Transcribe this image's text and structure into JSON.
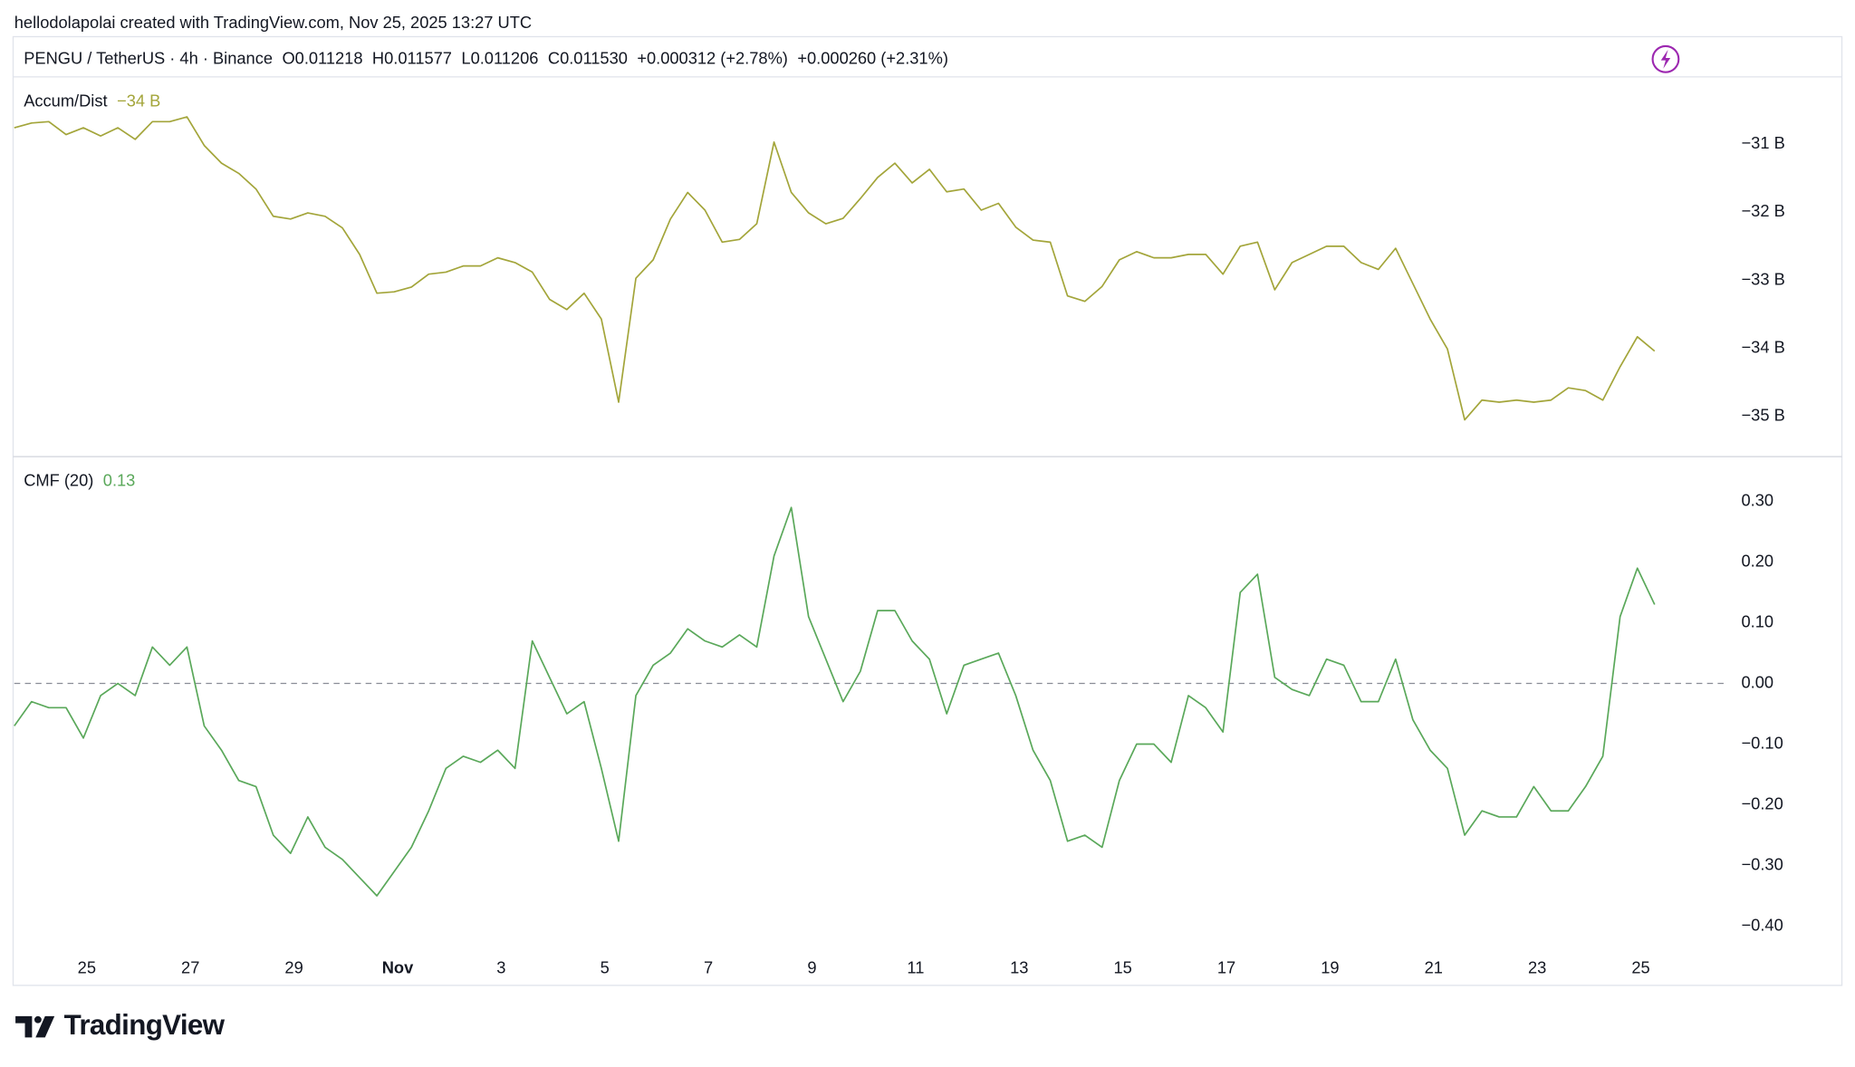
{
  "header": {
    "attribution": "hellodolapolai created with TradingView.com, Nov 25, 2025 13:27 UTC",
    "symbol": "PENGU / TetherUS · 4h · Binance",
    "ohlc": [
      "O0.011218",
      "H0.011577",
      "L0.011206",
      "C0.011530",
      "+0.000312 (+2.78%)",
      "+0.000260 (+2.31%)"
    ]
  },
  "brand": "TradingView",
  "chart_data": [
    {
      "type": "line",
      "xlim": [
        0,
        99.2
      ],
      "ylim": [
        -35.59,
        -30.03
      ],
      "yticks": [
        {
          "value": -31,
          "label": "−31 B"
        },
        {
          "value": -32,
          "label": "−32 B"
        },
        {
          "value": -33,
          "label": "−33 B"
        },
        {
          "value": -34,
          "label": "−34 B"
        },
        {
          "value": -35,
          "label": "−35 B"
        }
      ],
      "series": [
        {
          "name": "Accum/Dist",
          "last_label": "−34 B",
          "color": "#a3a53a",
          "values": [
            -30.76,
            -30.69,
            -30.67,
            -30.86,
            -30.76,
            -30.88,
            -30.76,
            -30.93,
            -30.67,
            -30.67,
            -30.6,
            -31.02,
            -31.28,
            -31.43,
            -31.66,
            -32.06,
            -32.1,
            -32.01,
            -32.06,
            -32.23,
            -32.62,
            -33.19,
            -33.17,
            -33.1,
            -32.91,
            -32.88,
            -32.79,
            -32.79,
            -32.67,
            -32.74,
            -32.88,
            -33.28,
            -33.43,
            -33.19,
            -33.57,
            -34.79,
            -32.97,
            -32.7,
            -32.1,
            -31.71,
            -31.97,
            -32.44,
            -32.4,
            -32.17,
            -30.97,
            -31.71,
            -32.01,
            -32.17,
            -32.09,
            -31.8,
            -31.49,
            -31.28,
            -31.57,
            -31.37,
            -31.7,
            -31.66,
            -31.97,
            -31.87,
            -32.22,
            -32.41,
            -32.44,
            -33.23,
            -33.31,
            -33.09,
            -32.7,
            -32.58,
            -32.67,
            -32.67,
            -32.62,
            -32.62,
            -32.91,
            -32.5,
            -32.44,
            -33.14,
            -32.74,
            -32.62,
            -32.5,
            -32.5,
            -32.74,
            -32.84,
            -32.53,
            -33.05,
            -33.57,
            -34.01,
            -35.05,
            -34.76,
            -34.79,
            -34.76,
            -34.79,
            -34.76,
            -34.58,
            -34.62,
            -34.76,
            -34.27,
            -33.83,
            -34.04
          ]
        }
      ]
    },
    {
      "type": "line",
      "xlim": [
        0,
        99.2
      ],
      "ylim": [
        -0.443,
        0.366
      ],
      "baseline": 0,
      "yticks": [
        {
          "value": 0.3,
          "label": "0.30"
        },
        {
          "value": 0.2,
          "label": "0.20"
        },
        {
          "value": 0.1,
          "label": "0.10"
        },
        {
          "value": 0,
          "label": "0.00"
        },
        {
          "value": -0.1,
          "label": "−0.10"
        },
        {
          "value": -0.2,
          "label": "−0.20"
        },
        {
          "value": -0.3,
          "label": "−0.30"
        },
        {
          "value": -0.4,
          "label": "−0.40"
        }
      ],
      "xticks": [
        {
          "value": 4.2,
          "label": "25"
        },
        {
          "value": 10.2,
          "label": "27"
        },
        {
          "value": 16.2,
          "label": "29"
        },
        {
          "value": 22.2,
          "label": "Nov"
        },
        {
          "value": 28.2,
          "label": "3"
        },
        {
          "value": 34.2,
          "label": "5"
        },
        {
          "value": 40.2,
          "label": "7"
        },
        {
          "value": 46.2,
          "label": "9"
        },
        {
          "value": 52.2,
          "label": "11"
        },
        {
          "value": 58.2,
          "label": "13"
        },
        {
          "value": 64.2,
          "label": "15"
        },
        {
          "value": 70.2,
          "label": "17"
        },
        {
          "value": 76.2,
          "label": "19"
        },
        {
          "value": 82.2,
          "label": "21"
        },
        {
          "value": 88.2,
          "label": "23"
        },
        {
          "value": 94.2,
          "label": "25"
        }
      ],
      "series": [
        {
          "name": "CMF (20)",
          "last_label": "0.13",
          "color": "#5aa85a",
          "values": [
            -0.07,
            -0.03,
            -0.04,
            -0.04,
            -0.09,
            -0.02,
            0.0,
            -0.02,
            0.06,
            0.03,
            0.06,
            -0.07,
            -0.11,
            -0.16,
            -0.17,
            -0.25,
            -0.28,
            -0.22,
            -0.27,
            -0.29,
            -0.32,
            -0.35,
            -0.31,
            -0.27,
            -0.21,
            -0.14,
            -0.12,
            -0.13,
            -0.11,
            -0.14,
            0.07,
            0.01,
            -0.05,
            -0.03,
            -0.14,
            -0.26,
            -0.02,
            0.03,
            0.05,
            0.09,
            0.07,
            0.06,
            0.08,
            0.06,
            0.21,
            0.29,
            0.11,
            0.04,
            -0.03,
            0.02,
            0.12,
            0.12,
            0.07,
            0.04,
            -0.05,
            0.03,
            0.04,
            0.05,
            -0.02,
            -0.11,
            -0.16,
            -0.26,
            -0.25,
            -0.27,
            -0.16,
            -0.1,
            -0.1,
            -0.13,
            -0.02,
            -0.04,
            -0.08,
            0.15,
            0.18,
            0.01,
            -0.01,
            -0.02,
            0.04,
            0.03,
            -0.03,
            -0.03,
            0.04,
            -0.06,
            -0.11,
            -0.14,
            -0.25,
            -0.21,
            -0.22,
            -0.22,
            -0.17,
            -0.21,
            -0.21,
            -0.17,
            -0.12,
            0.11,
            0.19,
            0.13
          ]
        }
      ]
    }
  ]
}
